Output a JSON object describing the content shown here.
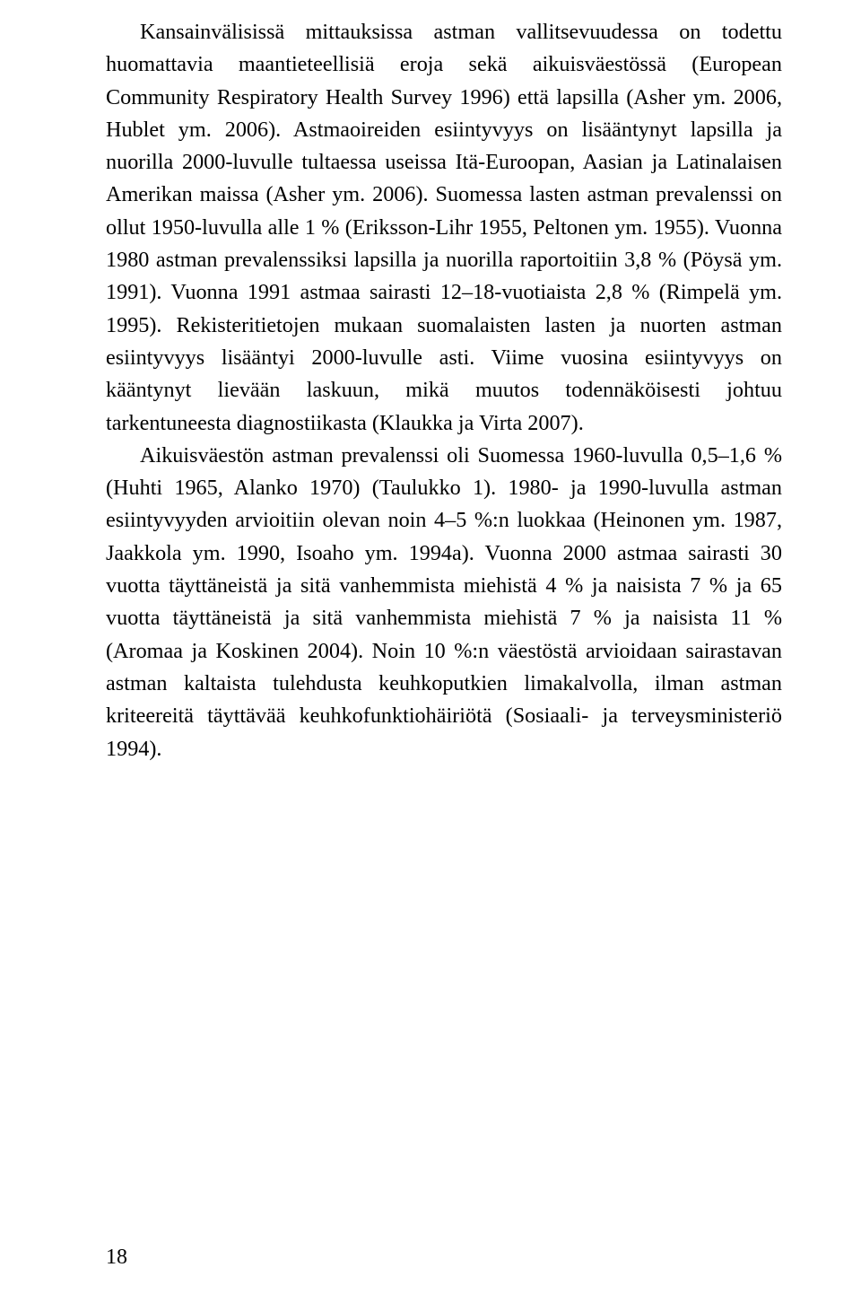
{
  "page": {
    "number": "18",
    "paragraphs": [
      "Kansainvälisissä mittauksissa astman vallitsevuudessa on todettu huomattavia maantieteellisiä eroja sekä aikuisväestössä (European Community Respiratory Health Survey 1996) että lapsilla (Asher ym. 2006, Hublet ym. 2006). Astmaoireiden esiintyvyys on lisääntynyt lapsilla ja nuorilla 2000-luvulle tultaessa useissa Itä-Euroopan, Aasian ja Latinalaisen Amerikan maissa (Asher ym. 2006). Suomessa lasten astman prevalenssi on ollut 1950-luvulla alle 1 % (Eriksson-Lihr 1955, Peltonen ym. 1955). Vuonna 1980 astman prevalenssiksi lapsilla ja nuorilla raportoitiin 3,8 % (Pöysä ym. 1991). Vuonna 1991 astmaa sairasti 12–18-vuotiaista 2,8 % (Rimpelä ym. 1995). Rekisteritietojen mukaan suomalaisten lasten ja nuorten astman esiintyvyys lisääntyi 2000-luvulle asti. Viime vuosina esiintyvyys on kääntynyt lievään laskuun, mikä muutos todennäköisesti johtuu tarkentuneesta diagnostiikasta (Klaukka ja Virta 2007).",
      "Aikuisväestön astman prevalenssi oli Suomessa 1960-luvulla 0,5–1,6 % (Huhti 1965, Alanko 1970) (Taulukko 1). 1980- ja 1990-luvulla astman esiintyvyyden arvioitiin olevan noin 4–5 %:n luokkaa (Heinonen ym. 1987, Jaakkola ym. 1990, Isoaho ym. 1994a). Vuonna 2000 astmaa sairasti 30 vuotta täyttäneistä ja sitä vanhemmista miehistä 4 % ja naisista 7 % ja 65 vuotta täyttäneistä ja sitä vanhemmista miehistä 7 % ja naisista 11 % (Aromaa ja Koskinen 2004). Noin 10 %:n väestöstä arvioidaan sairastavan astman kaltaista tulehdusta keuhkoputkien limakalvolla, ilman astman kriteereitä täyttävää keuhkofunktiohäiriötä (Sosiaali- ja terveysministeriö 1994)."
    ]
  }
}
